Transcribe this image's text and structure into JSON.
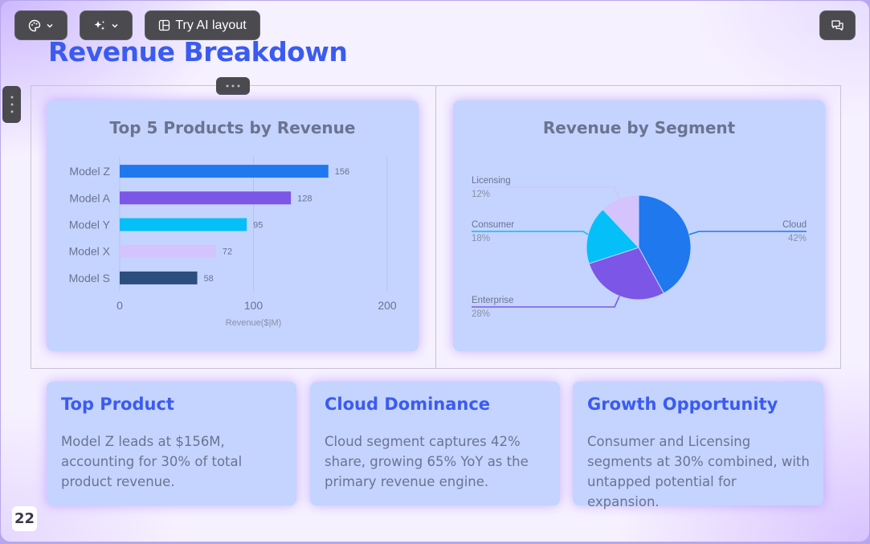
{
  "toolbar": {
    "theme_icon": "palette-icon",
    "magic_icon": "sparkles-icon",
    "layout_icon": "layout-icon",
    "ai_layout_label": "Try AI layout",
    "comment_icon": "comment-icon"
  },
  "slide": {
    "title": "Revenue Breakdown",
    "page_number": "22"
  },
  "colors": {
    "accent": "#3b5bf0",
    "card_bg": "#c4d4fe",
    "text_muted": "#6b7391"
  },
  "chart_data": [
    {
      "type": "bar",
      "orientation": "horizontal",
      "title": "Top 5 Products by Revenue",
      "categories": [
        "Model Z",
        "Model A",
        "Model Y",
        "Model X",
        "Model S"
      ],
      "values": [
        156,
        128,
        95,
        72,
        58
      ],
      "colors": [
        "#1f78ee",
        "#7c56e6",
        "#04bff8",
        "#d4c3fc",
        "#2d4d7f"
      ],
      "xlabel": "Revenue($|M)",
      "ylabel": "",
      "xlim": [
        0,
        200
      ],
      "xticks": [
        0,
        100,
        200
      ],
      "grid": true
    },
    {
      "type": "pie",
      "title": "Revenue by Segment",
      "labels": [
        "Cloud",
        "Enterprise",
        "Consumer",
        "Licensing"
      ],
      "values": [
        42,
        28,
        18,
        12
      ],
      "value_labels": [
        "42%",
        "28%",
        "18%",
        "12%"
      ],
      "colors": [
        "#1f78ee",
        "#7c56e6",
        "#04bff8",
        "#d4c3fc"
      ]
    }
  ],
  "insights": [
    {
      "title": "Top Product",
      "body": "Model Z leads at $156M, accounting for 30% of total product revenue."
    },
    {
      "title": "Cloud Dominance",
      "body": "Cloud segment captures 42% share, growing 65% YoY as the primary revenue engine."
    },
    {
      "title": "Growth Opportunity",
      "body": "Consumer and Licensing segments at 30% combined, with untapped potential for expansion."
    }
  ]
}
